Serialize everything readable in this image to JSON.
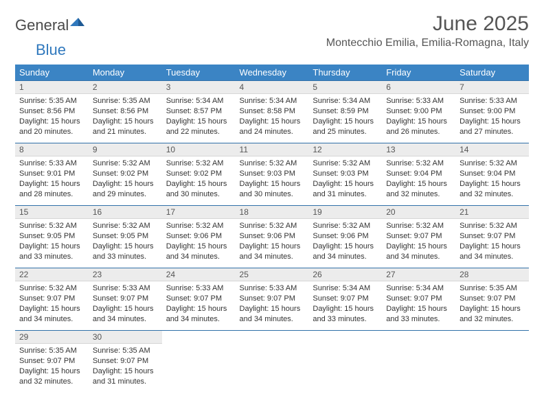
{
  "logo": {
    "word1": "General",
    "word2": "Blue"
  },
  "title": "June 2025",
  "subtitle": "Montecchio Emilia, Emilia-Romagna, Italy",
  "colors": {
    "header_bg": "#3b84c4",
    "header_text": "#ffffff",
    "daynum_bg": "#ececec",
    "daynum_border_top": "#2f6fa8",
    "body_text": "#333333",
    "title_text": "#555555",
    "logo_gray": "#4a4a4a",
    "logo_blue": "#2f78bd"
  },
  "typography": {
    "title_fontsize": 30,
    "subtitle_fontsize": 16,
    "header_fontsize": 13,
    "daynum_fontsize": 12,
    "cell_fontsize": 11
  },
  "day_headers": [
    "Sunday",
    "Monday",
    "Tuesday",
    "Wednesday",
    "Thursday",
    "Friday",
    "Saturday"
  ],
  "labels": {
    "sunrise": "Sunrise:",
    "sunset": "Sunset:",
    "daylight": "Daylight:"
  },
  "weeks": [
    [
      {
        "n": "1",
        "sr": "5:35 AM",
        "ss": "8:56 PM",
        "dl": "15 hours and 20 minutes."
      },
      {
        "n": "2",
        "sr": "5:35 AM",
        "ss": "8:56 PM",
        "dl": "15 hours and 21 minutes."
      },
      {
        "n": "3",
        "sr": "5:34 AM",
        "ss": "8:57 PM",
        "dl": "15 hours and 22 minutes."
      },
      {
        "n": "4",
        "sr": "5:34 AM",
        "ss": "8:58 PM",
        "dl": "15 hours and 24 minutes."
      },
      {
        "n": "5",
        "sr": "5:34 AM",
        "ss": "8:59 PM",
        "dl": "15 hours and 25 minutes."
      },
      {
        "n": "6",
        "sr": "5:33 AM",
        "ss": "9:00 PM",
        "dl": "15 hours and 26 minutes."
      },
      {
        "n": "7",
        "sr": "5:33 AM",
        "ss": "9:00 PM",
        "dl": "15 hours and 27 minutes."
      }
    ],
    [
      {
        "n": "8",
        "sr": "5:33 AM",
        "ss": "9:01 PM",
        "dl": "15 hours and 28 minutes."
      },
      {
        "n": "9",
        "sr": "5:32 AM",
        "ss": "9:02 PM",
        "dl": "15 hours and 29 minutes."
      },
      {
        "n": "10",
        "sr": "5:32 AM",
        "ss": "9:02 PM",
        "dl": "15 hours and 30 minutes."
      },
      {
        "n": "11",
        "sr": "5:32 AM",
        "ss": "9:03 PM",
        "dl": "15 hours and 30 minutes."
      },
      {
        "n": "12",
        "sr": "5:32 AM",
        "ss": "9:03 PM",
        "dl": "15 hours and 31 minutes."
      },
      {
        "n": "13",
        "sr": "5:32 AM",
        "ss": "9:04 PM",
        "dl": "15 hours and 32 minutes."
      },
      {
        "n": "14",
        "sr": "5:32 AM",
        "ss": "9:04 PM",
        "dl": "15 hours and 32 minutes."
      }
    ],
    [
      {
        "n": "15",
        "sr": "5:32 AM",
        "ss": "9:05 PM",
        "dl": "15 hours and 33 minutes."
      },
      {
        "n": "16",
        "sr": "5:32 AM",
        "ss": "9:05 PM",
        "dl": "15 hours and 33 minutes."
      },
      {
        "n": "17",
        "sr": "5:32 AM",
        "ss": "9:06 PM",
        "dl": "15 hours and 34 minutes."
      },
      {
        "n": "18",
        "sr": "5:32 AM",
        "ss": "9:06 PM",
        "dl": "15 hours and 34 minutes."
      },
      {
        "n": "19",
        "sr": "5:32 AM",
        "ss": "9:06 PM",
        "dl": "15 hours and 34 minutes."
      },
      {
        "n": "20",
        "sr": "5:32 AM",
        "ss": "9:07 PM",
        "dl": "15 hours and 34 minutes."
      },
      {
        "n": "21",
        "sr": "5:32 AM",
        "ss": "9:07 PM",
        "dl": "15 hours and 34 minutes."
      }
    ],
    [
      {
        "n": "22",
        "sr": "5:32 AM",
        "ss": "9:07 PM",
        "dl": "15 hours and 34 minutes."
      },
      {
        "n": "23",
        "sr": "5:33 AM",
        "ss": "9:07 PM",
        "dl": "15 hours and 34 minutes."
      },
      {
        "n": "24",
        "sr": "5:33 AM",
        "ss": "9:07 PM",
        "dl": "15 hours and 34 minutes."
      },
      {
        "n": "25",
        "sr": "5:33 AM",
        "ss": "9:07 PM",
        "dl": "15 hours and 34 minutes."
      },
      {
        "n": "26",
        "sr": "5:34 AM",
        "ss": "9:07 PM",
        "dl": "15 hours and 33 minutes."
      },
      {
        "n": "27",
        "sr": "5:34 AM",
        "ss": "9:07 PM",
        "dl": "15 hours and 33 minutes."
      },
      {
        "n": "28",
        "sr": "5:35 AM",
        "ss": "9:07 PM",
        "dl": "15 hours and 32 minutes."
      }
    ],
    [
      {
        "n": "29",
        "sr": "5:35 AM",
        "ss": "9:07 PM",
        "dl": "15 hours and 32 minutes."
      },
      {
        "n": "30",
        "sr": "5:35 AM",
        "ss": "9:07 PM",
        "dl": "15 hours and 31 minutes."
      },
      null,
      null,
      null,
      null,
      null
    ]
  ]
}
